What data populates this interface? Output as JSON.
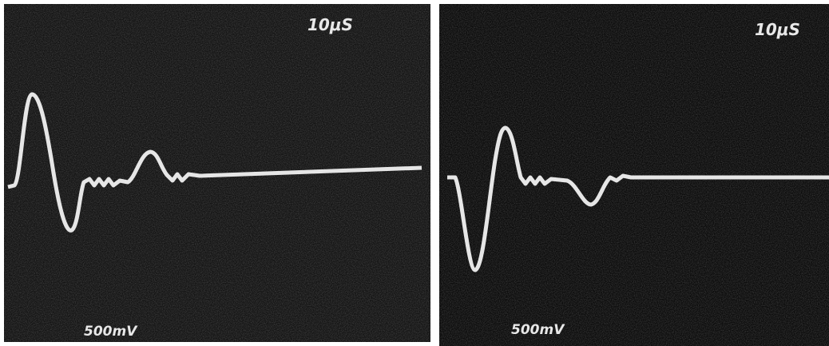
{
  "panels": [
    {
      "timebase": "10μS",
      "volts": "500mV"
    },
    {
      "timebase": "10μS",
      "volts": "500mV"
    }
  ]
}
